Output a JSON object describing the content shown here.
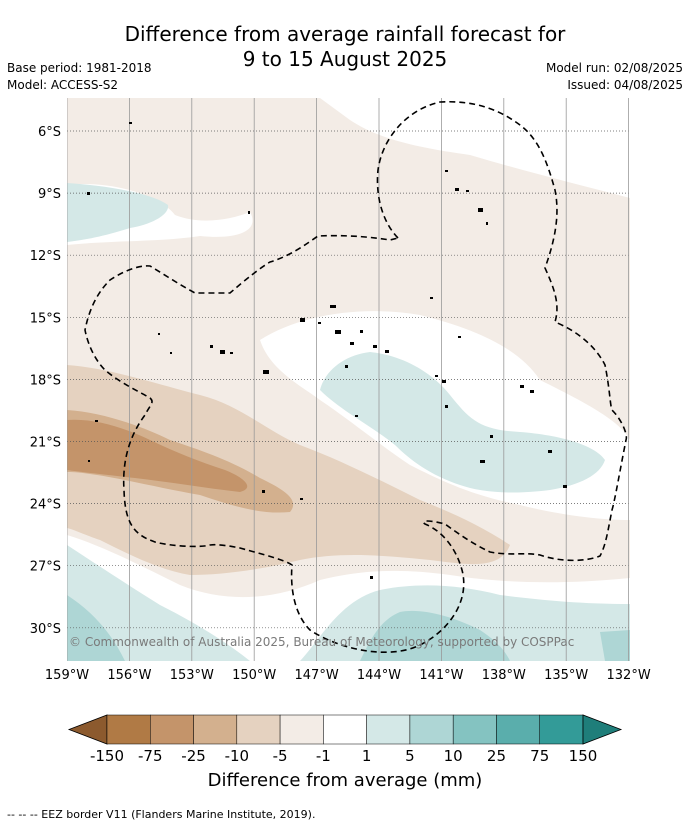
{
  "title_line1": "Difference from average rainfall forecast for",
  "title_line2": "9 to 15 August 2025",
  "meta": {
    "base_period": "Base period: 1981-2018",
    "model": "Model: ACCESS-S2",
    "model_run": "Model run: 02/08/2025",
    "issued": "Issued: 04/08/2025"
  },
  "map": {
    "lat_labels": [
      "6°S",
      "9°S",
      "12°S",
      "15°S",
      "18°S",
      "21°S",
      "24°S",
      "27°S",
      "30°S"
    ],
    "lon_labels": [
      "159°W",
      "156°W",
      "153°W",
      "150°W",
      "147°W",
      "144°W",
      "141°W",
      "138°W",
      "135°W",
      "132°W"
    ],
    "copyright": "© Commonwealth of Australia 2025, Bureau of Meteorology, supported by COSPPac",
    "eez_style": "dashed",
    "grid": true
  },
  "colorbar": {
    "labels": [
      "-150",
      "-75",
      "-25",
      "-10",
      "-5",
      "-1",
      "1",
      "5",
      "10",
      "25",
      "75",
      "150"
    ],
    "colors": [
      "#8c5a2e",
      "#b07a45",
      "#c4946a",
      "#d3b08e",
      "#e5d2c0",
      "#f3ece6",
      "#ffffff",
      "#d4e8e7",
      "#aed6d5",
      "#84c3c1",
      "#5aaeac",
      "#339b98",
      "#1f7e7a"
    ],
    "title": "Difference from average (mm)"
  },
  "footer": "--  --  -- EEZ border V11 (Flanders Marine Institute, 2019)."
}
